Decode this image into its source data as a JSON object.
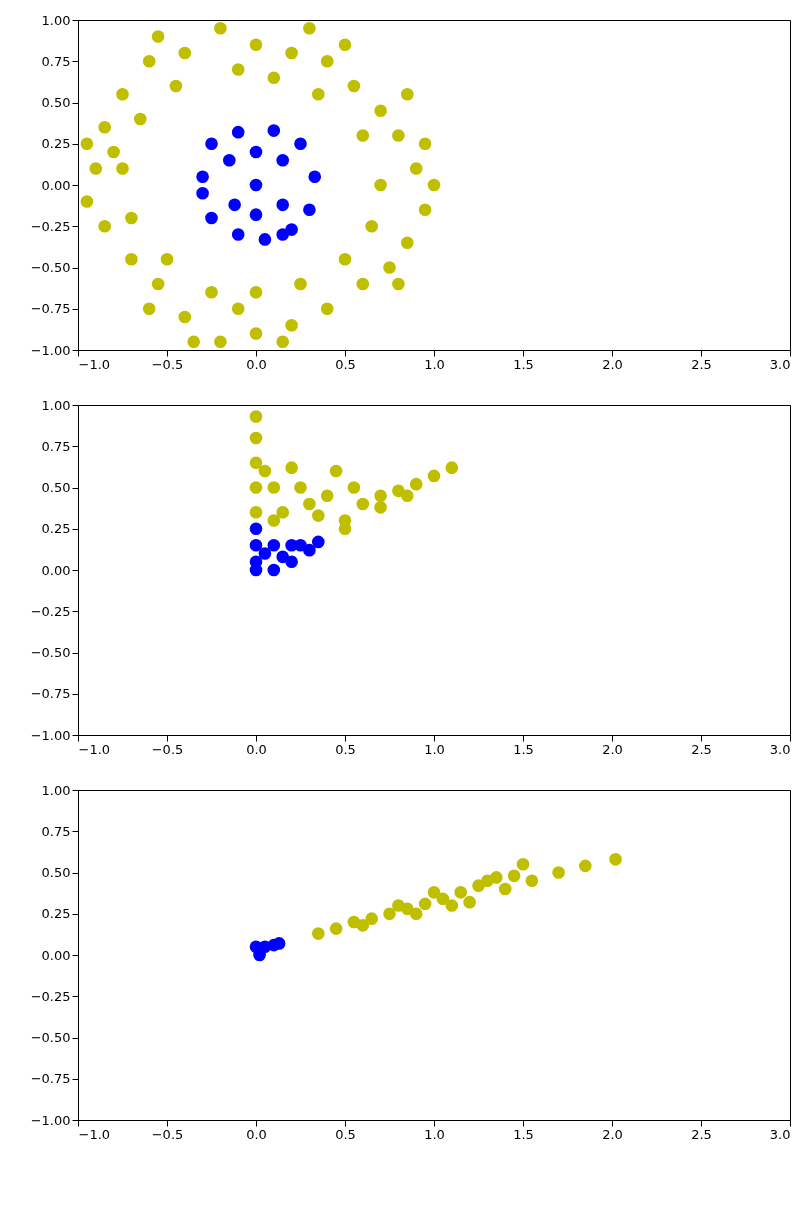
{
  "chart_data": [
    {
      "type": "scatter",
      "marker": "circle",
      "xlim": [
        -1,
        3
      ],
      "ylim": [
        -1,
        1
      ],
      "xticks": [
        {
          "value": -1,
          "label": "−1.0"
        },
        {
          "value": -0.5,
          "label": "−0.5"
        },
        {
          "value": 0,
          "label": "0.0"
        },
        {
          "value": 0.5,
          "label": "0.5"
        },
        {
          "value": 1,
          "label": "1.0"
        },
        {
          "value": 1.5,
          "label": "1.5"
        },
        {
          "value": 2,
          "label": "2.0"
        },
        {
          "value": 2.5,
          "label": "2.5"
        },
        {
          "value": 3,
          "label": "3.0"
        }
      ],
      "yticks": [
        {
          "value": -1,
          "label": "−1.00"
        },
        {
          "value": -0.75,
          "label": "−0.75"
        },
        {
          "value": -0.5,
          "label": "−0.50"
        },
        {
          "value": -0.25,
          "label": "−0.25"
        },
        {
          "value": 0,
          "label": "0.00"
        },
        {
          "value": 0.25,
          "label": "0.25"
        },
        {
          "value": 0.5,
          "label": "0.50"
        },
        {
          "value": 0.75,
          "label": "0.75"
        },
        {
          "value": 1,
          "label": "1.00"
        }
      ],
      "series": [
        {
          "color": "#bfbf00",
          "x": [
            -0.9,
            -0.95,
            -0.85,
            -0.75,
            -0.6,
            -0.4,
            -0.2,
            0.0,
            0.2,
            0.4,
            0.55,
            0.7,
            0.8,
            0.9,
            1.0,
            0.95,
            0.85,
            0.75,
            0.6,
            0.4,
            0.2,
            0.0,
            -0.2,
            -0.4,
            -0.55,
            -0.7,
            -0.85,
            -0.75,
            -0.65,
            -0.45,
            -0.1,
            0.1,
            0.35,
            0.6,
            0.7,
            0.65,
            0.5,
            0.25,
            0.0,
            -0.25,
            -0.5,
            -0.7,
            -0.8,
            0.85,
            -0.55,
            0.3,
            -0.1,
            0.15,
            -0.6,
            0.8,
            0.95,
            -0.95,
            0.5,
            -0.35
          ],
          "values": [
            0.1,
            -0.1,
            0.35,
            0.55,
            0.75,
            0.8,
            0.95,
            0.85,
            0.8,
            0.75,
            0.6,
            0.45,
            0.3,
            0.1,
            0.0,
            -0.15,
            -0.35,
            -0.5,
            -0.6,
            -0.75,
            -0.85,
            -0.9,
            -0.95,
            -0.8,
            -0.6,
            -0.45,
            -0.25,
            0.1,
            0.4,
            0.6,
            0.7,
            0.65,
            0.55,
            0.3,
            0.0,
            -0.25,
            -0.45,
            -0.6,
            -0.65,
            -0.65,
            -0.45,
            -0.2,
            0.2,
            0.55,
            0.9,
            0.95,
            -0.75,
            -0.95,
            -0.75,
            -0.6,
            0.25,
            0.25,
            0.85,
            -0.95
          ]
        },
        {
          "color": "#0000ff",
          "x": [
            0,
            -0.3,
            -0.25,
            -0.1,
            0.1,
            0.25,
            0.33,
            0.3,
            0.2,
            0.05,
            -0.1,
            -0.25,
            -0.3,
            -0.15,
            0.15,
            0.15,
            -0.12,
            0,
            0,
            0.15
          ],
          "values": [
            0,
            0.05,
            0.25,
            0.32,
            0.33,
            0.25,
            0.05,
            -0.15,
            -0.27,
            -0.33,
            -0.3,
            -0.2,
            -0.05,
            0.15,
            0.15,
            -0.12,
            -0.12,
            0.2,
            -0.18,
            -0.3
          ]
        }
      ]
    },
    {
      "type": "scatter",
      "marker": "circle",
      "xlim": [
        -1,
        3
      ],
      "ylim": [
        -1,
        1
      ],
      "xticks": [
        {
          "value": -1,
          "label": "−1.0"
        },
        {
          "value": -0.5,
          "label": "−0.5"
        },
        {
          "value": 0,
          "label": "0.0"
        },
        {
          "value": 0.5,
          "label": "0.5"
        },
        {
          "value": 1,
          "label": "1.0"
        },
        {
          "value": 1.5,
          "label": "1.5"
        },
        {
          "value": 2,
          "label": "2.0"
        },
        {
          "value": 2.5,
          "label": "2.5"
        },
        {
          "value": 3,
          "label": "3.0"
        }
      ],
      "yticks": [
        {
          "value": -1,
          "label": "−1.00"
        },
        {
          "value": -0.75,
          "label": "−0.75"
        },
        {
          "value": -0.5,
          "label": "−0.50"
        },
        {
          "value": -0.25,
          "label": "−0.25"
        },
        {
          "value": 0,
          "label": "0.00"
        },
        {
          "value": 0.25,
          "label": "0.25"
        },
        {
          "value": 0.5,
          "label": "0.50"
        },
        {
          "value": 0.75,
          "label": "0.75"
        },
        {
          "value": 1,
          "label": "1.00"
        }
      ],
      "series": [
        {
          "color": "#bfbf00",
          "x": [
            0,
            0,
            0,
            0,
            0,
            0.05,
            0.1,
            0.2,
            0.25,
            0.3,
            0.4,
            0.45,
            0.5,
            0.55,
            0.6,
            0.7,
            0.8,
            0.9,
            1.0,
            1.1,
            0.15,
            0.35,
            0.7,
            0.5,
            0.85,
            0.1
          ],
          "values": [
            0.93,
            0.8,
            0.65,
            0.5,
            0.35,
            0.6,
            0.5,
            0.62,
            0.5,
            0.4,
            0.45,
            0.6,
            0.3,
            0.5,
            0.4,
            0.45,
            0.48,
            0.52,
            0.57,
            0.62,
            0.35,
            0.33,
            0.38,
            0.25,
            0.45,
            0.3
          ]
        },
        {
          "color": "#0000ff",
          "x": [
            0,
            0,
            0,
            0,
            0.1,
            0.2,
            0.3,
            0.35,
            0.2,
            0.1,
            0.05,
            0.15,
            0.25
          ],
          "values": [
            0.25,
            0.15,
            0.05,
            0,
            0,
            0.05,
            0.12,
            0.17,
            0.15,
            0.15,
            0.1,
            0.08,
            0.15
          ]
        }
      ]
    },
    {
      "type": "scatter",
      "marker": "circle",
      "xlim": [
        -1,
        3
      ],
      "ylim": [
        -1,
        1
      ],
      "xticks": [
        {
          "value": -1,
          "label": "−1.0"
        },
        {
          "value": -0.5,
          "label": "−0.5"
        },
        {
          "value": 0,
          "label": "0.0"
        },
        {
          "value": 0.5,
          "label": "0.5"
        },
        {
          "value": 1,
          "label": "1.0"
        },
        {
          "value": 1.5,
          "label": "1.5"
        },
        {
          "value": 2,
          "label": "2.0"
        },
        {
          "value": 2.5,
          "label": "2.5"
        },
        {
          "value": 3,
          "label": "3.0"
        }
      ],
      "yticks": [
        {
          "value": -1,
          "label": "−1.00"
        },
        {
          "value": -0.75,
          "label": "−0.75"
        },
        {
          "value": -0.5,
          "label": "−0.50"
        },
        {
          "value": -0.25,
          "label": "−0.25"
        },
        {
          "value": 0,
          "label": "0.00"
        },
        {
          "value": 0.25,
          "label": "0.25"
        },
        {
          "value": 0.5,
          "label": "0.50"
        },
        {
          "value": 0.75,
          "label": "0.75"
        },
        {
          "value": 1,
          "label": "1.00"
        }
      ],
      "series": [
        {
          "color": "#bfbf00",
          "x": [
            0.35,
            0.45,
            0.55,
            0.65,
            0.75,
            0.85,
            0.95,
            1.05,
            1.15,
            1.25,
            1.35,
            1.5,
            1.2,
            1.4,
            1.55,
            1.7,
            1.85,
            2.02,
            0.6,
            0.9,
            1.1,
            0.8,
            1.0,
            1.3,
            1.45
          ],
          "values": [
            0.13,
            0.16,
            0.2,
            0.22,
            0.25,
            0.28,
            0.31,
            0.34,
            0.38,
            0.42,
            0.47,
            0.55,
            0.32,
            0.4,
            0.45,
            0.5,
            0.54,
            0.58,
            0.18,
            0.25,
            0.3,
            0.3,
            0.38,
            0.45,
            0.48
          ]
        },
        {
          "color": "#0000ff",
          "x": [
            0,
            0.05,
            0.1,
            0.13,
            0.02
          ],
          "values": [
            0.05,
            0.05,
            0.06,
            0.07,
            0.0
          ]
        }
      ]
    }
  ]
}
